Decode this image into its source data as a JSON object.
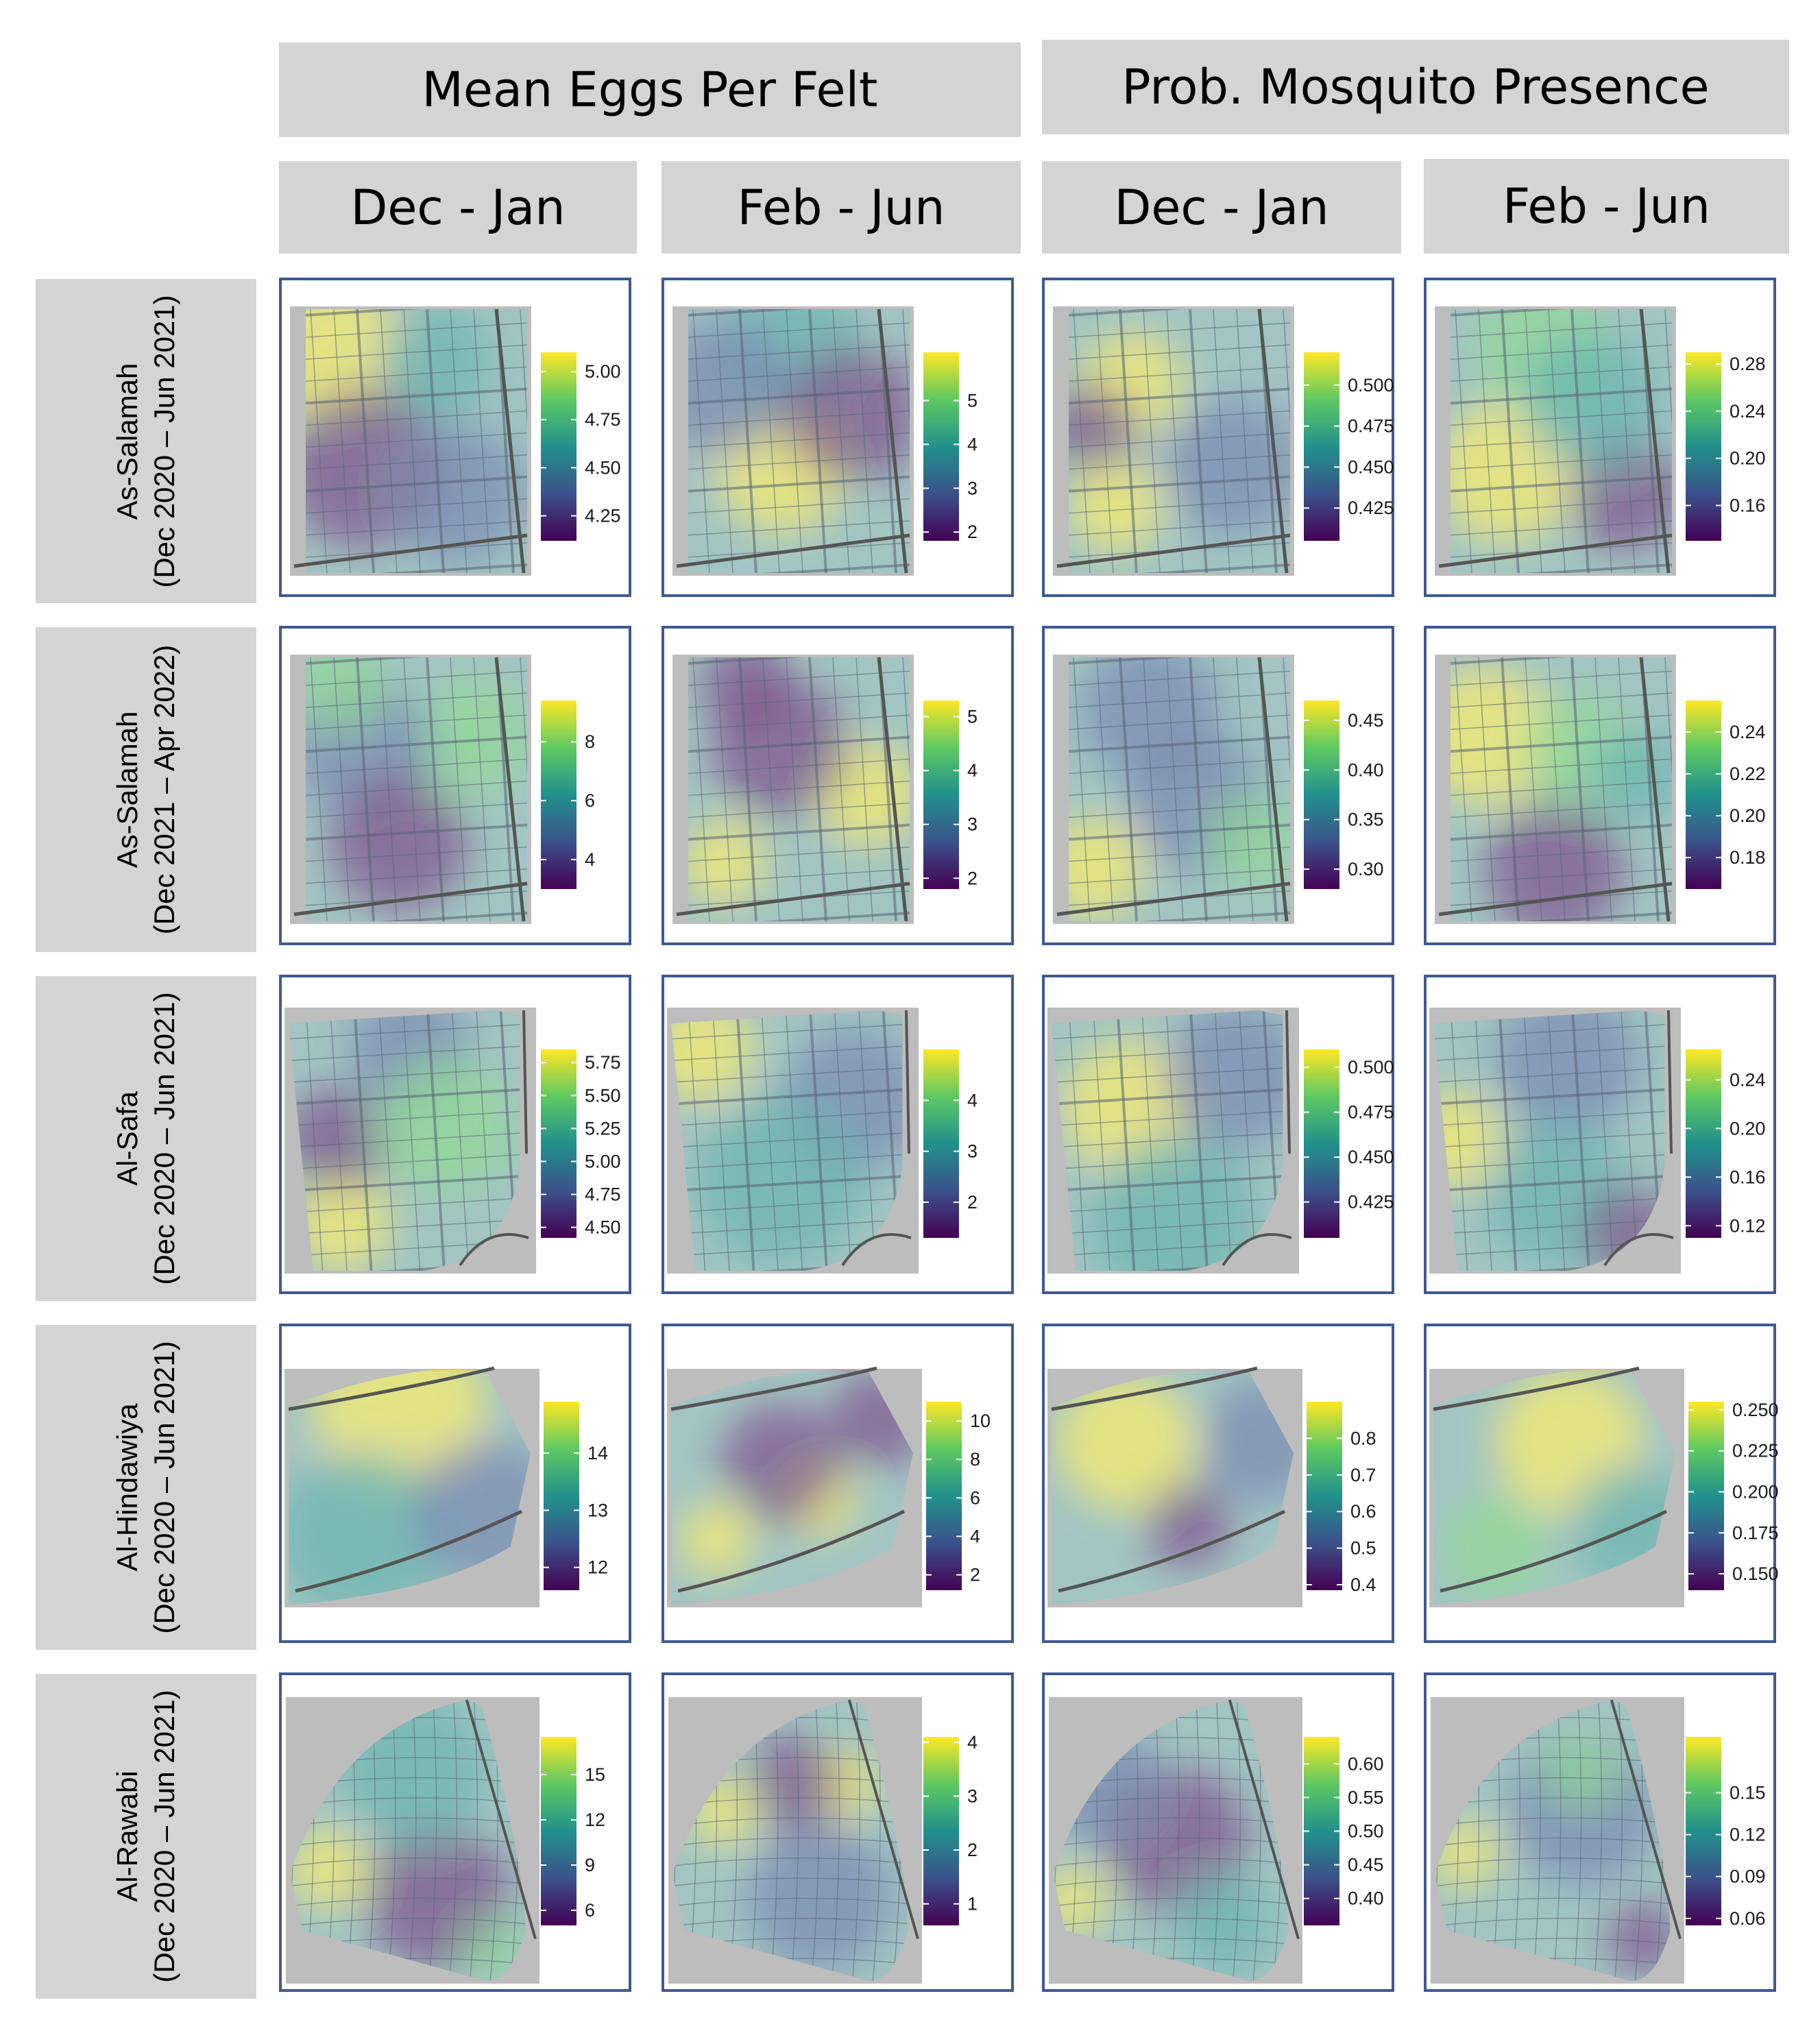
{
  "headers": {
    "group_eggs": "Mean Eggs Per Felt",
    "group_prob": "Prob. Mosquito Presence",
    "periods": [
      "Dec - Jan",
      "Feb - Jun",
      "Dec - Jan",
      "Feb - Jun"
    ]
  },
  "rows": [
    {
      "site": "As-Salamah",
      "period": "(Dec 2020 – Jun 2021)"
    },
    {
      "site": "As-Salamah",
      "period": "(Dec 2021 – Apr 2022)"
    },
    {
      "site": "Al-Safa",
      "period": "(Dec 2020 – Jun 2021)"
    },
    {
      "site": "Al-Hindawiya",
      "period": "(Dec 2020 – Jun 2021)"
    },
    {
      "site": "Al-Rawabi",
      "period": "(Dec 2020 – Jun 2021)"
    }
  ],
  "colors": {
    "header_bg": "#d4d4d4",
    "panel_border": "#3c5a93",
    "viridis": [
      "#440154",
      "#3b528b",
      "#21918c",
      "#5ec962",
      "#fde725"
    ]
  },
  "chart_data": [
    {
      "type": "heatmap",
      "row": 0,
      "col": 0,
      "title": "Mean Eggs Per Felt",
      "period": "Dec - Jan",
      "scale": {
        "range": [
          4.12,
          5.1
        ],
        "ticks": [
          4.25,
          4.5,
          4.75,
          5.0
        ],
        "tick_labels": [
          "4.25",
          "4.50",
          "4.75",
          "5.00"
        ]
      }
    },
    {
      "type": "heatmap",
      "row": 0,
      "col": 1,
      "title": "Mean Eggs Per Felt",
      "period": "Feb - Jun",
      "scale": {
        "range": [
          1.8,
          6.1
        ],
        "ticks": [
          2,
          3,
          4,
          5
        ],
        "tick_labels": [
          "2",
          "3",
          "4",
          "5"
        ]
      }
    },
    {
      "type": "heatmap",
      "row": 0,
      "col": 2,
      "title": "Prob. Mosquito Presence",
      "period": "Dec - Jan",
      "scale": {
        "range": [
          0.405,
          0.52
        ],
        "ticks": [
          0.425,
          0.45,
          0.475,
          0.5
        ],
        "tick_labels": [
          "0.425",
          "0.450",
          "0.475",
          "0.500"
        ]
      }
    },
    {
      "type": "heatmap",
      "row": 0,
      "col": 3,
      "title": "Prob. Mosquito Presence",
      "period": "Feb - Jun",
      "scale": {
        "range": [
          0.13,
          0.29
        ],
        "ticks": [
          0.16,
          0.2,
          0.24,
          0.28
        ],
        "tick_labels": [
          "0.16",
          "0.20",
          "0.24",
          "0.28"
        ]
      }
    },
    {
      "type": "heatmap",
      "row": 1,
      "col": 0,
      "title": "Mean Eggs Per Felt",
      "period": "Dec - Jan",
      "scale": {
        "range": [
          3.0,
          9.4
        ],
        "ticks": [
          4,
          6,
          8
        ],
        "tick_labels": [
          "4",
          "6",
          "8"
        ]
      }
    },
    {
      "type": "heatmap",
      "row": 1,
      "col": 1,
      "title": "Mean Eggs Per Felt",
      "period": "Feb - Jun",
      "scale": {
        "range": [
          1.8,
          5.3
        ],
        "ticks": [
          2,
          3,
          4,
          5
        ],
        "tick_labels": [
          "2",
          "3",
          "4",
          "5"
        ]
      }
    },
    {
      "type": "heatmap",
      "row": 1,
      "col": 2,
      "title": "Prob. Mosquito Presence",
      "period": "Dec - Jan",
      "scale": {
        "range": [
          0.28,
          0.47
        ],
        "ticks": [
          0.3,
          0.35,
          0.4,
          0.45
        ],
        "tick_labels": [
          "0.30",
          "0.35",
          "0.40",
          "0.45"
        ]
      }
    },
    {
      "type": "heatmap",
      "row": 1,
      "col": 3,
      "title": "Prob. Mosquito Presence",
      "period": "Feb - Jun",
      "scale": {
        "range": [
          0.165,
          0.255
        ],
        "ticks": [
          0.18,
          0.2,
          0.22,
          0.24
        ],
        "tick_labels": [
          "0.18",
          "0.20",
          "0.22",
          "0.24"
        ]
      }
    },
    {
      "type": "heatmap",
      "row": 2,
      "col": 0,
      "title": "Mean Eggs Per Felt",
      "period": "Dec - Jan",
      "scale": {
        "range": [
          4.42,
          5.85
        ],
        "ticks": [
          4.5,
          4.75,
          5.0,
          5.25,
          5.5,
          5.75
        ],
        "tick_labels": [
          "4.50",
          "4.75",
          "5.00",
          "5.25",
          "5.50",
          "5.75"
        ]
      }
    },
    {
      "type": "heatmap",
      "row": 2,
      "col": 1,
      "title": "Mean Eggs Per Felt",
      "period": "Feb - Jun",
      "scale": {
        "range": [
          1.3,
          5.0
        ],
        "ticks": [
          2,
          3,
          4
        ],
        "tick_labels": [
          "2",
          "3",
          "4"
        ]
      }
    },
    {
      "type": "heatmap",
      "row": 2,
      "col": 2,
      "title": "Prob. Mosquito Presence",
      "period": "Dec - Jan",
      "scale": {
        "range": [
          0.405,
          0.51
        ],
        "ticks": [
          0.425,
          0.45,
          0.475,
          0.5
        ],
        "tick_labels": [
          "0.425",
          "0.450",
          "0.475",
          "0.500"
        ]
      }
    },
    {
      "type": "heatmap",
      "row": 2,
      "col": 3,
      "title": "Prob. Mosquito Presence",
      "period": "Feb - Jun",
      "scale": {
        "range": [
          0.11,
          0.265
        ],
        "ticks": [
          0.12,
          0.16,
          0.2,
          0.24
        ],
        "tick_labels": [
          "0.12",
          "0.16",
          "0.20",
          "0.24"
        ]
      }
    },
    {
      "type": "heatmap",
      "row": 3,
      "col": 0,
      "title": "Mean Eggs Per Felt",
      "period": "Dec - Jan",
      "scale": {
        "range": [
          11.6,
          14.9
        ],
        "ticks": [
          12,
          13,
          14
        ],
        "tick_labels": [
          "12",
          "13",
          "14"
        ]
      }
    },
    {
      "type": "heatmap",
      "row": 3,
      "col": 1,
      "title": "Mean Eggs Per Felt",
      "period": "Feb - Jun",
      "scale": {
        "range": [
          1.2,
          11.0
        ],
        "ticks": [
          2,
          4,
          6,
          8,
          10
        ],
        "tick_labels": [
          "2",
          "4",
          "6",
          "8",
          "10"
        ]
      }
    },
    {
      "type": "heatmap",
      "row": 3,
      "col": 2,
      "title": "Prob. Mosquito Presence",
      "period": "Dec - Jan",
      "scale": {
        "range": [
          0.385,
          0.9
        ],
        "ticks": [
          0.4,
          0.5,
          0.6,
          0.7,
          0.8
        ],
        "tick_labels": [
          "0.4",
          "0.5",
          "0.6",
          "0.7",
          "0.8"
        ]
      }
    },
    {
      "type": "heatmap",
      "row": 3,
      "col": 3,
      "title": "Prob. Mosquito Presence",
      "period": "Feb - Jun",
      "scale": {
        "range": [
          0.14,
          0.255
        ],
        "ticks": [
          0.15,
          0.175,
          0.2,
          0.225,
          0.25
        ],
        "tick_labels": [
          "0.150",
          "0.175",
          "0.200",
          "0.225",
          "0.250"
        ]
      }
    },
    {
      "type": "heatmap",
      "row": 4,
      "col": 0,
      "title": "Mean Eggs Per Felt",
      "period": "Dec - Jan",
      "scale": {
        "range": [
          5.0,
          17.5
        ],
        "ticks": [
          6,
          9,
          12,
          15
        ],
        "tick_labels": [
          "6",
          "9",
          "12",
          "15"
        ]
      }
    },
    {
      "type": "heatmap",
      "row": 4,
      "col": 1,
      "title": "Mean Eggs Per Felt",
      "period": "Feb - Jun",
      "scale": {
        "range": [
          0.6,
          4.1
        ],
        "ticks": [
          1,
          2,
          3,
          4
        ],
        "tick_labels": [
          "1",
          "2",
          "3",
          "4"
        ]
      }
    },
    {
      "type": "heatmap",
      "row": 4,
      "col": 2,
      "title": "Prob. Mosquito Presence",
      "period": "Dec - Jan",
      "scale": {
        "range": [
          0.36,
          0.64
        ],
        "ticks": [
          0.4,
          0.45,
          0.5,
          0.55,
          0.6
        ],
        "tick_labels": [
          "0.40",
          "0.45",
          "0.50",
          "0.55",
          "0.60"
        ]
      }
    },
    {
      "type": "heatmap",
      "row": 4,
      "col": 3,
      "title": "Prob. Mosquito Presence",
      "period": "Feb - Jun",
      "scale": {
        "range": [
          0.055,
          0.19
        ],
        "ticks": [
          0.06,
          0.09,
          0.12,
          0.15
        ],
        "tick_labels": [
          "0.06",
          "0.09",
          "0.12",
          "0.15"
        ]
      }
    }
  ]
}
